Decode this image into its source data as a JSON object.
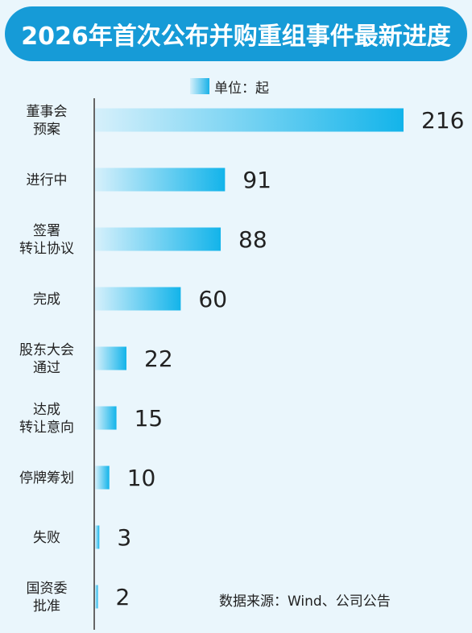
{
  "title": "2026年首次公布并购重组事件最新进度",
  "legend": {
    "label": "单位：起"
  },
  "source": "数据来源：Wind、公司公告",
  "colors": {
    "title_bg": "#169bd7",
    "bar_start": "#d6f0fb",
    "bar_end": "#13b4ea",
    "axis": "#666666",
    "background": "#eaf6fc"
  },
  "chart_data": {
    "type": "bar",
    "orientation": "horizontal",
    "categories": [
      [
        "董事会",
        "预案"
      ],
      [
        "进行中"
      ],
      [
        "签署",
        "转让协议"
      ],
      [
        "完成"
      ],
      [
        "股东大会",
        "通过"
      ],
      [
        "达成",
        "转让意向"
      ],
      [
        "停牌筹划"
      ],
      [
        "失败"
      ],
      [
        "国资委",
        "批准"
      ]
    ],
    "values": [
      216,
      91,
      88,
      60,
      22,
      15,
      10,
      3,
      2
    ],
    "value_labels": [
      "216",
      "91",
      "88",
      "60",
      "22",
      "15",
      "10",
      "3",
      "2"
    ],
    "unit": "单位：起",
    "xlim": [
      0,
      216
    ],
    "grid": false,
    "legend_position": "top-center"
  }
}
